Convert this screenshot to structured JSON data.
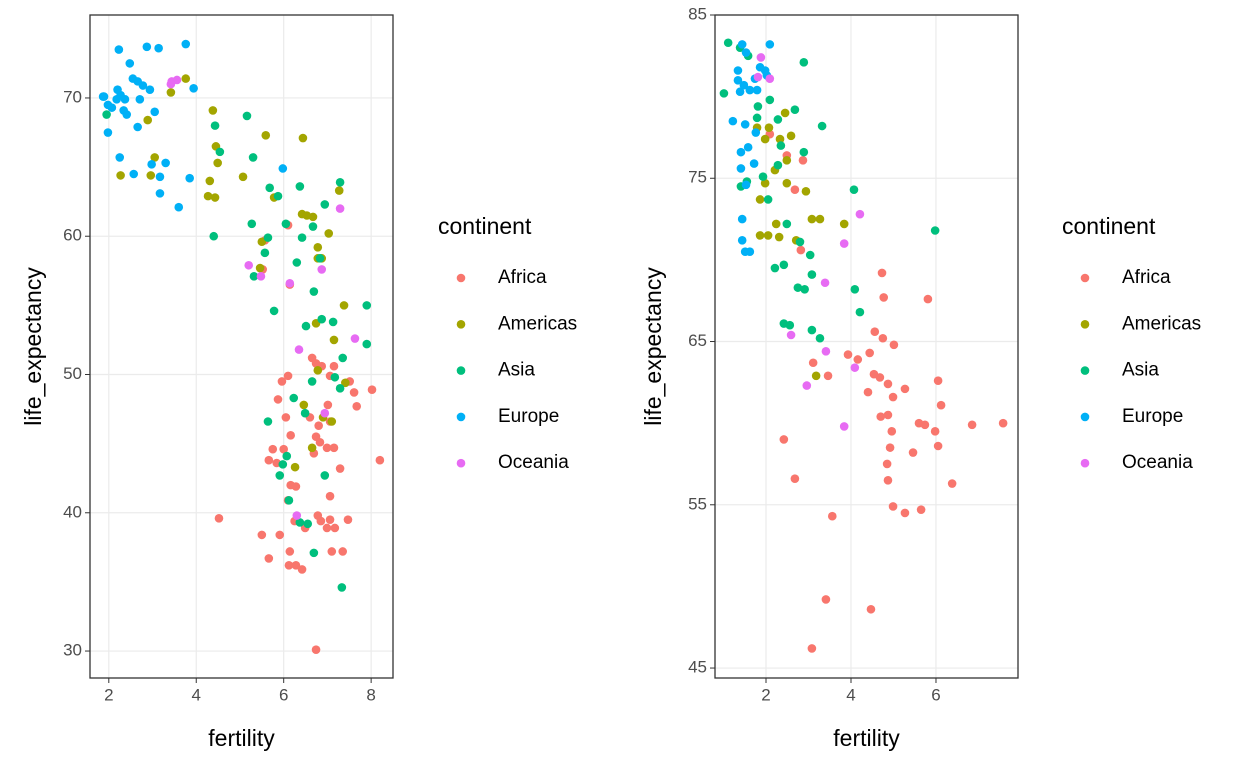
{
  "chart_data": [
    {
      "type": "scatter",
      "x_label": "fertility",
      "y_label": "life_expectancy",
      "legend_title": "continent",
      "xlim": [
        1.57,
        8.5
      ],
      "ylim": [
        28.05,
        76.0
      ],
      "xticks": [
        2,
        4,
        6,
        8
      ],
      "yticks": [
        30,
        40,
        50,
        60,
        70
      ],
      "grid": true,
      "series": [
        {
          "name": "Africa",
          "color": "#F8766D",
          "x": [
            5.57,
            5.52,
            6.1,
            6.14,
            5.96,
            6.1,
            6.65,
            6.74,
            6.87,
            7.15,
            7.06,
            7.61,
            8.02,
            7.51,
            7.67,
            7.01,
            6.6,
            6.8,
            7.06,
            5.87,
            6.05,
            6.16,
            6.74,
            6.83,
            6.99,
            7.15,
            5.75,
            6.0,
            5.66,
            5.84,
            6.28,
            6.16,
            6.69,
            7.29,
            8.2,
            7.06,
            6.1,
            4.52,
            5.5,
            5.91,
            6.25,
            6.78,
            6.85,
            7.06,
            7.47,
            6.99,
            7.17,
            5.66,
            6.14,
            7.1,
            7.35,
            6.12,
            6.28,
            6.42,
            6.74,
            6.49
          ],
          "y": [
            59.7,
            57.6,
            60.8,
            56.5,
            49.5,
            49.9,
            51.2,
            50.8,
            50.6,
            50.6,
            49.9,
            48.7,
            48.9,
            49.5,
            47.7,
            47.8,
            46.9,
            46.3,
            46.6,
            48.2,
            46.9,
            45.6,
            45.5,
            45.1,
            44.7,
            44.7,
            44.6,
            44.6,
            43.8,
            43.6,
            41.9,
            42.0,
            44.3,
            43.2,
            43.8,
            41.2,
            40.9,
            39.6,
            38.4,
            38.4,
            39.4,
            39.8,
            39.4,
            39.5,
            39.5,
            38.9,
            38.9,
            36.7,
            37.2,
            37.2,
            37.2,
            36.2,
            36.2,
            35.9,
            30.1,
            38.9
          ]
        },
        {
          "name": "Americas",
          "color": "#A3A500",
          "x": [
            3.76,
            3.42,
            4.38,
            2.89,
            2.27,
            3.05,
            2.96,
            4.31,
            4.43,
            4.27,
            4.45,
            4.49,
            5.07,
            5.59,
            6.44,
            5.78,
            5.5,
            5.46,
            6.42,
            6.53,
            6.67,
            7.03,
            6.78,
            6.78,
            6.87,
            7.27,
            7.38,
            7.41,
            7.15,
            6.74,
            6.78,
            6.46,
            6.26,
            6.65,
            6.9,
            7.1
          ],
          "y": [
            71.4,
            70.4,
            69.1,
            68.4,
            64.4,
            65.7,
            64.4,
            64.0,
            62.8,
            62.9,
            66.5,
            65.3,
            64.3,
            67.3,
            67.1,
            62.8,
            59.6,
            57.7,
            61.6,
            61.5,
            61.4,
            60.2,
            59.2,
            58.4,
            58.4,
            63.3,
            55.0,
            49.4,
            52.5,
            53.7,
            50.3,
            47.8,
            43.3,
            44.7,
            46.9,
            46.6
          ]
        },
        {
          "name": "Asia",
          "color": "#00BF7D",
          "x": [
            1.95,
            4.43,
            4.54,
            4.4,
            5.16,
            5.3,
            5.27,
            5.57,
            5.64,
            5.68,
            5.87,
            6.37,
            6.05,
            6.3,
            6.42,
            6.67,
            6.94,
            7.29,
            6.83,
            6.69,
            6.51,
            6.87,
            7.13,
            7.9,
            7.9,
            5.32,
            5.78,
            7.35,
            7.17,
            7.29,
            6.65,
            6.23,
            6.49,
            5.64,
            6.07,
            5.98,
            5.91,
            6.12,
            6.37,
            6.55,
            6.94,
            6.69,
            7.33
          ],
          "y": [
            68.8,
            68.0,
            66.1,
            60.0,
            68.7,
            65.7,
            60.9,
            58.8,
            59.9,
            63.5,
            62.9,
            63.6,
            60.9,
            58.1,
            59.9,
            60.7,
            62.3,
            63.9,
            58.4,
            56.0,
            53.5,
            54.0,
            53.8,
            55.0,
            52.2,
            57.1,
            54.6,
            51.2,
            49.8,
            49.0,
            49.5,
            48.3,
            47.2,
            46.6,
            44.1,
            43.5,
            42.7,
            40.9,
            39.3,
            39.2,
            42.7,
            37.1,
            34.6
          ]
        },
        {
          "name": "Europe",
          "color": "#00B0F6",
          "x": [
            1.89,
            1.87,
            1.98,
            1.98,
            2.23,
            2.2,
            2.27,
            2.18,
            2.37,
            2.48,
            2.55,
            2.66,
            2.78,
            2.87,
            3.14,
            3.76,
            2.94,
            2.71,
            2.41,
            2.66,
            2.25,
            2.57,
            2.98,
            3.17,
            3.3,
            3.17,
            3.6,
            3.85,
            3.94,
            3.05,
            2.34,
            5.98,
            2.07
          ],
          "y": [
            70.1,
            70.1,
            69.5,
            67.5,
            73.5,
            70.6,
            70.2,
            69.9,
            69.9,
            72.5,
            71.4,
            71.2,
            70.9,
            73.7,
            73.6,
            73.9,
            70.6,
            69.9,
            68.8,
            67.9,
            65.7,
            64.5,
            65.2,
            64.3,
            65.3,
            63.1,
            62.1,
            64.2,
            70.7,
            69.0,
            69.1,
            64.9,
            69.3
          ]
        },
        {
          "name": "Oceania",
          "color": "#E76BF3",
          "x": [
            3.44,
            3.56,
            5.2,
            5.48,
            6.14,
            6.87,
            7.29,
            6.35,
            7.63,
            6.94,
            6.3,
            3.42
          ],
          "y": [
            71.2,
            71.3,
            57.9,
            57.1,
            56.6,
            57.6,
            62.0,
            51.8,
            52.6,
            47.2,
            39.8,
            71.0
          ]
        }
      ]
    },
    {
      "type": "scatter",
      "x_label": "fertility",
      "y_label": "life_expectancy",
      "legend_title": "continent",
      "xlim": [
        0.8,
        7.93
      ],
      "ylim": [
        44.39,
        85.0
      ],
      "xticks": [
        2,
        4,
        6
      ],
      "yticks": [
        45,
        55,
        65,
        75,
        85
      ],
      "grid": true,
      "series": [
        {
          "name": "Africa",
          "color": "#F8766D",
          "x": [
            2.09,
            2.49,
            2.87,
            2.68,
            2.82,
            2.42,
            2.68,
            3.08,
            3.41,
            3.56,
            4.47,
            3.11,
            3.46,
            3.93,
            4.16,
            4.44,
            4.56,
            4.54,
            4.75,
            4.73,
            4.77,
            5.01,
            4.87,
            4.99,
            4.87,
            4.7,
            4.96,
            4.92,
            5.27,
            5.46,
            5.6,
            5.81,
            6.05,
            6.12,
            5.98,
            6.05,
            5.74,
            6.38,
            6.85,
            7.58,
            4.99,
            5.27,
            5.65,
            4.85,
            4.87,
            4.68,
            4.4
          ],
          "y": [
            77.7,
            76.4,
            76.1,
            74.3,
            70.6,
            59.0,
            56.6,
            46.2,
            49.2,
            54.3,
            48.6,
            63.7,
            62.9,
            64.2,
            63.9,
            64.3,
            65.6,
            63.0,
            65.2,
            69.2,
            67.7,
            64.8,
            62.4,
            61.6,
            60.5,
            60.4,
            59.5,
            58.5,
            62.1,
            58.2,
            60.0,
            67.6,
            62.6,
            61.1,
            59.5,
            58.6,
            59.9,
            56.3,
            59.9,
            60.0,
            54.9,
            54.5,
            54.7,
            57.5,
            56.5,
            62.8,
            61.9
          ]
        },
        {
          "name": "Americas",
          "color": "#A3A500",
          "x": [
            1.79,
            2.07,
            2.33,
            2.59,
            2.49,
            2.21,
            2.49,
            1.98,
            1.86,
            2.05,
            2.31,
            2.94,
            3.08,
            3.27,
            3.84,
            3.18,
            2.71,
            2.24,
            1.86,
            2.45,
            1.98
          ],
          "y": [
            78.1,
            78.1,
            77.4,
            77.6,
            76.1,
            75.5,
            74.7,
            74.7,
            73.7,
            71.5,
            71.4,
            74.2,
            72.5,
            72.5,
            72.2,
            62.9,
            71.2,
            72.2,
            71.5,
            79.0,
            77.4
          ]
        },
        {
          "name": "Asia",
          "color": "#00BF7D",
          "x": [
            1.11,
            1.39,
            1.58,
            1.01,
            2.89,
            2.09,
            2.28,
            2.68,
            2.35,
            2.89,
            3.32,
            1.93,
            1.55,
            1.41,
            2.05,
            2.49,
            2.8,
            3.04,
            2.21,
            2.42,
            2.75,
            2.91,
            3.08,
            2.42,
            2.56,
            3.08,
            3.27,
            4.07,
            4.09,
            4.21,
            5.98,
            1.79,
            2.28,
            1.81
          ],
          "y": [
            83.3,
            83.0,
            82.5,
            80.2,
            82.1,
            79.8,
            78.6,
            79.2,
            77.0,
            76.6,
            78.2,
            75.1,
            74.8,
            74.5,
            73.7,
            72.2,
            71.1,
            70.3,
            69.5,
            69.7,
            68.3,
            68.2,
            69.1,
            66.1,
            66.0,
            65.7,
            65.2,
            74.3,
            68.2,
            66.8,
            71.8,
            78.7,
            75.8,
            79.4
          ]
        },
        {
          "name": "Europe",
          "color": "#00B0F6",
          "x": [
            1.44,
            2.09,
            1.53,
            1.34,
            1.86,
            1.98,
            1.34,
            1.48,
            1.62,
            1.74,
            2.02,
            1.39,
            1.22,
            1.51,
            1.76,
            1.41,
            1.58,
            1.41,
            1.53,
            1.44,
            1.44,
            1.51,
            1.62,
            1.72,
            1.79
          ],
          "y": [
            83.2,
            83.2,
            82.7,
            81.6,
            81.8,
            81.6,
            81.0,
            80.7,
            80.4,
            81.1,
            81.3,
            80.3,
            78.5,
            78.3,
            77.8,
            76.6,
            76.9,
            75.6,
            74.6,
            72.5,
            71.2,
            70.5,
            70.5,
            75.9,
            80.4
          ]
        },
        {
          "name": "Oceania",
          "color": "#E76BF3",
          "x": [
            1.88,
            1.81,
            2.09,
            4.21,
            3.84,
            3.41,
            4.09,
            3.84,
            2.96,
            3.39,
            2.59
          ],
          "y": [
            82.4,
            81.2,
            81.1,
            72.8,
            71.0,
            64.4,
            63.4,
            59.8,
            62.3,
            68.6,
            65.4
          ]
        }
      ]
    }
  ]
}
